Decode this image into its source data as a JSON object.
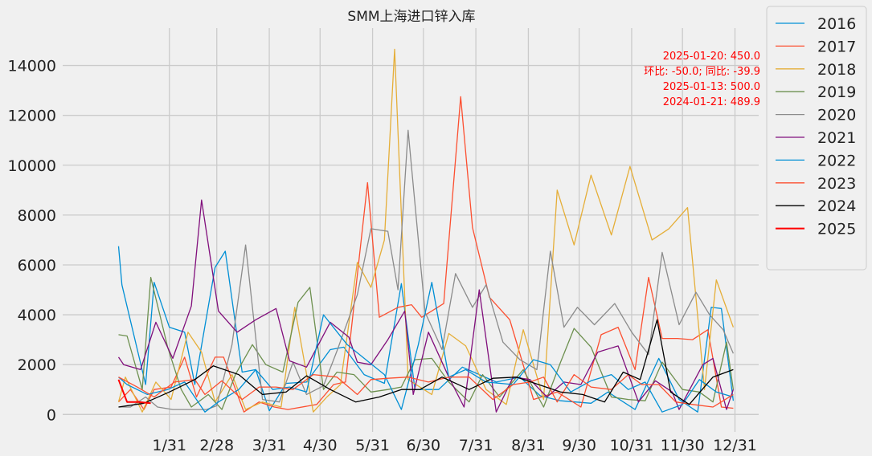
{
  "chart_data": {
    "type": "line",
    "title": "SMM上海进口锌入库",
    "xlabel": "",
    "ylabel": "",
    "ylim": [
      -700,
      15500
    ],
    "yticks": [
      0,
      2000,
      4000,
      6000,
      8000,
      10000,
      12000,
      14000
    ],
    "xtick_labels": [
      "1/31",
      "2/28",
      "3/31",
      "4/30",
      "5/31",
      "6/30",
      "7/31",
      "8/31",
      "9/30",
      "10/31",
      "11/30",
      "12/31"
    ],
    "xtick_days": [
      31,
      59,
      90,
      120,
      151,
      181,
      212,
      243,
      273,
      304,
      334,
      365
    ],
    "x_unit": "day of year",
    "x_range": [
      -32,
      379
    ],
    "grid": true,
    "legend_position": "outside-right",
    "annotation": [
      "2025-01-20: 450.0",
      "环比: -50.0; 同比: -39.9",
      "2025-01-13: 500.0",
      "2024-01-21: 489.9"
    ],
    "series": [
      {
        "name": "2016",
        "color": "#008fd5",
        "width": 1.3,
        "x": [
          1,
          3,
          17,
          22,
          31,
          40,
          46,
          58,
          64,
          74,
          82,
          90,
          100,
          112,
          126,
          134,
          146,
          158,
          168,
          176,
          190,
          204,
          224,
          238,
          250,
          262,
          280,
          290,
          306,
          320,
          332,
          343,
          351,
          357,
          364
        ],
        "y": [
          6750,
          5200,
          1200,
          5300,
          3500,
          3300,
          1200,
          5900,
          6550,
          1700,
          1800,
          150,
          1250,
          1300,
          2600,
          2700,
          1600,
          1250,
          5250,
          1000,
          1000,
          1900,
          1300,
          1500,
          750,
          550,
          450,
          900,
          200,
          2250,
          600,
          100,
          4300,
          4250,
          550
        ]
      },
      {
        "name": "2017",
        "color": "#fc4f30",
        "width": 1.3,
        "x": [
          1,
          8,
          16,
          22,
          32,
          40,
          47,
          58,
          63,
          75,
          84,
          93,
          101,
          118,
          128,
          135,
          148,
          155,
          166,
          174,
          180,
          193,
          203,
          210,
          220,
          232,
          246,
          260,
          274,
          286,
          296,
          306,
          314,
          322,
          331,
          340,
          349,
          357,
          364
        ],
        "y": [
          500,
          1000,
          200,
          1000,
          1100,
          2300,
          700,
          2300,
          2300,
          100,
          500,
          300,
          200,
          400,
          1200,
          1300,
          9300,
          3900,
          4300,
          4400,
          3900,
          4450,
          12750,
          7500,
          4700,
          3800,
          600,
          900,
          300,
          3200,
          3500,
          1800,
          5500,
          3050,
          3050,
          3000,
          3400,
          300,
          250
        ]
      },
      {
        "name": "2018",
        "color": "#e5ae38",
        "width": 1.3,
        "x": [
          1,
          5,
          15,
          23,
          32,
          42,
          50,
          58,
          68,
          76,
          86,
          97,
          105,
          116,
          124,
          132,
          142,
          150,
          158,
          164,
          172,
          186,
          196,
          206,
          218,
          230,
          240,
          252,
          260,
          270,
          280,
          292,
          303,
          316,
          326,
          337,
          347,
          354,
          364
        ],
        "y": [
          500,
          1500,
          100,
          1300,
          600,
          3300,
          2500,
          500,
          1600,
          200,
          500,
          300,
          4300,
          100,
          700,
          1200,
          6100,
          5100,
          7000,
          14650,
          1400,
          800,
          3250,
          2750,
          1000,
          400,
          3400,
          600,
          9000,
          6800,
          9600,
          7200,
          9950,
          7000,
          7450,
          8300,
          1000,
          5400,
          3500
        ]
      },
      {
        "name": "2019",
        "color": "#6d904f",
        "width": 1.3,
        "x": [
          1,
          6,
          15,
          20,
          30,
          38,
          44,
          54,
          62,
          70,
          80,
          88,
          98,
          107,
          114,
          122,
          130,
          140,
          150,
          160,
          168,
          176,
          186,
          196,
          208,
          216,
          226,
          240,
          252,
          262,
          270,
          280,
          292,
          302,
          312,
          322,
          334,
          344,
          352,
          360,
          364
        ],
        "y": [
          3200,
          3150,
          1000,
          5500,
          2700,
          1000,
          300,
          800,
          200,
          1600,
          2800,
          2000,
          1700,
          4500,
          5100,
          1000,
          1700,
          1600,
          900,
          1000,
          1100,
          2200,
          2250,
          1300,
          500,
          1600,
          700,
          1800,
          300,
          2100,
          3450,
          2700,
          700,
          600,
          550,
          2100,
          1000,
          900,
          500,
          2900,
          1000
        ]
      },
      {
        "name": "2020",
        "color": "#8b8b8b",
        "width": 1.3,
        "x": [
          1,
          8,
          17,
          24,
          33,
          44,
          53,
          59,
          68,
          76,
          86,
          96,
          104,
          112,
          122,
          130,
          142,
          150,
          160,
          166,
          172,
          182,
          192,
          200,
          210,
          218,
          228,
          238,
          248,
          256,
          264,
          272,
          282,
          294,
          304,
          314,
          322,
          332,
          342,
          350,
          358,
          364
        ],
        "y": [
          300,
          300,
          700,
          300,
          200,
          200,
          200,
          350,
          2800,
          6800,
          600,
          500,
          2100,
          800,
          1150,
          2550,
          4800,
          7450,
          7350,
          5000,
          11400,
          4100,
          2600,
          5650,
          4300,
          5200,
          2900,
          2200,
          1800,
          6550,
          3500,
          4300,
          3600,
          4450,
          3300,
          2400,
          6500,
          3600,
          4900,
          4000,
          3400,
          2450
        ]
      },
      {
        "name": "2021",
        "color": "#810f7c",
        "width": 1.3,
        "x": [
          1,
          4,
          14,
          23,
          33,
          44,
          50,
          60,
          71,
          82,
          94,
          102,
          112,
          126,
          137,
          142,
          150,
          160,
          170,
          175,
          184,
          196,
          205,
          214,
          224,
          234,
          244,
          254,
          264,
          274,
          284,
          296,
          308,
          318,
          328,
          332,
          346,
          352,
          360,
          364
        ],
        "y": [
          2300,
          2000,
          1800,
          3700,
          2250,
          4350,
          8600,
          4150,
          3300,
          3800,
          4250,
          2150,
          1900,
          3700,
          3100,
          2100,
          2000,
          3000,
          4150,
          800,
          3300,
          1500,
          300,
          5000,
          100,
          1500,
          1400,
          700,
          1300,
          1200,
          2500,
          2750,
          500,
          1350,
          900,
          200,
          2000,
          2250,
          200,
          1000
        ]
      },
      {
        "name": "2022",
        "color": "#008fd5",
        "width": 1.3,
        "x": [
          1,
          6,
          18,
          30,
          40,
          52,
          60,
          72,
          82,
          92,
          102,
          112,
          122,
          136,
          147,
          158,
          168,
          178,
          186,
          196,
          206,
          218,
          234,
          246,
          256,
          268,
          280,
          292,
          302,
          312,
          322,
          334,
          344,
          354,
          364
        ],
        "y": [
          1500,
          1200,
          800,
          1000,
          1300,
          100,
          500,
          1000,
          1800,
          1000,
          1100,
          900,
          4000,
          2800,
          2200,
          1600,
          200,
          2800,
          5300,
          1500,
          1800,
          1300,
          1200,
          2200,
          2000,
          900,
          1350,
          1600,
          1000,
          1300,
          100,
          400,
          1400,
          900,
          700
        ]
      },
      {
        "name": "2023",
        "color": "#fc4f30",
        "width": 1.3,
        "x": [
          1,
          12,
          22,
          34,
          46,
          52,
          62,
          74,
          84,
          94,
          104,
          116,
          130,
          142,
          150,
          160,
          172,
          184,
          196,
          208,
          222,
          234,
          244,
          252,
          260,
          270,
          280,
          292,
          302,
          310,
          320,
          330,
          340,
          352,
          364
        ],
        "y": [
          1500,
          1100,
          700,
          1300,
          1400,
          800,
          1350,
          600,
          1100,
          1100,
          1000,
          1600,
          1500,
          800,
          1400,
          1450,
          1500,
          1300,
          1500,
          1500,
          600,
          1200,
          1300,
          1500,
          500,
          1600,
          1100,
          1000,
          1600,
          1200,
          1200,
          500,
          400,
          300,
          800
        ]
      },
      {
        "name": "2024",
        "color": "#000000",
        "width": 1.3,
        "x": [
          1,
          16,
          31,
          46,
          57,
          72,
          86,
          100,
          112,
          126,
          141,
          155,
          168,
          179,
          192,
          208,
          222,
          236,
          249,
          262,
          275,
          288,
          299,
          309,
          319,
          327,
          338,
          352,
          364
        ],
        "y": [
          300,
          450,
          900,
          1400,
          1950,
          1600,
          800,
          900,
          1550,
          1000,
          500,
          700,
          1000,
          1000,
          1500,
          1000,
          1450,
          1500,
          1200,
          900,
          800,
          500,
          1700,
          1400,
          3800,
          900,
          400,
          1500,
          1800
        ]
      },
      {
        "name": "2025",
        "color": "#ff0000",
        "width": 2.0,
        "x": [
          1,
          6,
          13,
          20
        ],
        "y": [
          1400,
          500,
          500,
          450
        ]
      }
    ]
  }
}
